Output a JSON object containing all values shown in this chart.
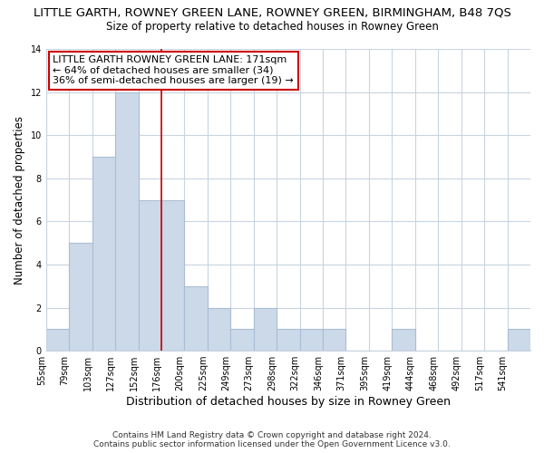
{
  "title": "LITTLE GARTH, ROWNEY GREEN LANE, ROWNEY GREEN, BIRMINGHAM, B48 7QS",
  "subtitle": "Size of property relative to detached houses in Rowney Green",
  "xlabel": "Distribution of detached houses by size in Rowney Green",
  "ylabel": "Number of detached properties",
  "bar_color": "#ccd9e8",
  "bar_edge_color": "#aabdd4",
  "grid_color": "#c8d4e0",
  "bin_labels": [
    "55sqm",
    "79sqm",
    "103sqm",
    "127sqm",
    "152sqm",
    "176sqm",
    "200sqm",
    "225sqm",
    "249sqm",
    "273sqm",
    "298sqm",
    "322sqm",
    "346sqm",
    "371sqm",
    "395sqm",
    "419sqm",
    "444sqm",
    "468sqm",
    "492sqm",
    "517sqm",
    "541sqm"
  ],
  "bar_values": [
    1,
    5,
    9,
    12,
    7,
    7,
    3,
    2,
    1,
    2,
    1,
    1,
    1,
    0,
    0,
    1,
    0,
    0,
    0,
    0,
    1
  ],
  "ylim": [
    0,
    14
  ],
  "yticks": [
    0,
    2,
    4,
    6,
    8,
    10,
    12,
    14
  ],
  "vline_x_index": 5,
  "vline_color": "#cc0000",
  "annotation_text": "LITTLE GARTH ROWNEY GREEN LANE: 171sqm\n← 64% of detached houses are smaller (34)\n36% of semi-detached houses are larger (19) →",
  "annotation_box_color": "#ffffff",
  "annotation_box_edge": "#cc0000",
  "footer_text": "Contains HM Land Registry data © Crown copyright and database right 2024.\nContains public sector information licensed under the Open Government Licence v3.0.",
  "background_color": "#ffffff",
  "plot_background": "#ffffff",
  "title_fontsize": 9.5,
  "subtitle_fontsize": 8.5,
  "xlabel_fontsize": 9,
  "ylabel_fontsize": 8.5,
  "tick_fontsize": 7,
  "footer_fontsize": 6.5,
  "annotation_fontsize": 8
}
